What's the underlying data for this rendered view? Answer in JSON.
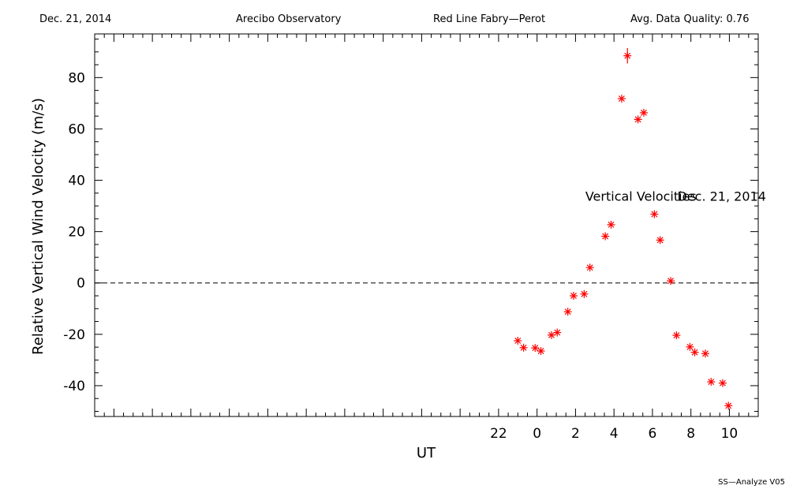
{
  "header": {
    "date": "Dec. 21, 2014",
    "site": "Arecibo Observatory",
    "instrument": "Red Line Fabry—Perot",
    "quality": "Avg. Data Quality: 0.76"
  },
  "footer": {
    "software": "SS—Analyze V05"
  },
  "chart_data": {
    "type": "scatter",
    "title": "",
    "xlabel": "UT",
    "ylabel": "Relative Vertical Wind Velocity (m/s)",
    "xlim": [
      -23,
      11.5
    ],
    "ylim": [
      -52,
      97
    ],
    "x_ticks": [
      22,
      0,
      2,
      4,
      6,
      8,
      10
    ],
    "y_ticks": [
      80,
      60,
      40,
      20,
      0,
      -20,
      -40
    ],
    "reference_line_y": 0,
    "marker_color": "#ff0000",
    "annotations": [
      {
        "text": "Vertical Velocities",
        "x": 5.4,
        "y": 32
      },
      {
        "text": "Dec. 21, 2014",
        "x": 9.6,
        "y": 32
      }
    ],
    "series": [
      {
        "points": [
          {
            "t": -1.0,
            "v": -22.5
          },
          {
            "t": -0.7,
            "v": -25.2
          },
          {
            "t": -0.1,
            "v": -25.3
          },
          {
            "t": 0.2,
            "v": -26.5
          },
          {
            "t": 0.75,
            "v": -20.3
          },
          {
            "t": 1.05,
            "v": -19.3
          },
          {
            "t": 1.6,
            "v": -11.2
          },
          {
            "t": 1.9,
            "v": -5.0
          },
          {
            "t": 2.45,
            "v": -4.3
          },
          {
            "t": 2.75,
            "v": 6.0
          },
          {
            "t": 3.55,
            "v": 18.2
          },
          {
            "t": 3.85,
            "v": 22.7
          },
          {
            "t": 4.4,
            "v": 71.8
          },
          {
            "t": 4.7,
            "v": 88.5,
            "err": 3
          },
          {
            "t": 5.25,
            "v": 63.7
          },
          {
            "t": 5.55,
            "v": 66.3
          },
          {
            "t": 6.1,
            "v": 26.8
          },
          {
            "t": 6.4,
            "v": 16.7
          },
          {
            "t": 6.95,
            "v": 0.8
          },
          {
            "t": 7.25,
            "v": -20.4
          },
          {
            "t": 7.95,
            "v": -24.9
          },
          {
            "t": 8.2,
            "v": -27.0
          },
          {
            "t": 8.75,
            "v": -27.5
          },
          {
            "t": 9.05,
            "v": -38.5
          },
          {
            "t": 9.65,
            "v": -39.0
          },
          {
            "t": 9.95,
            "v": -47.8
          }
        ]
      }
    ]
  }
}
